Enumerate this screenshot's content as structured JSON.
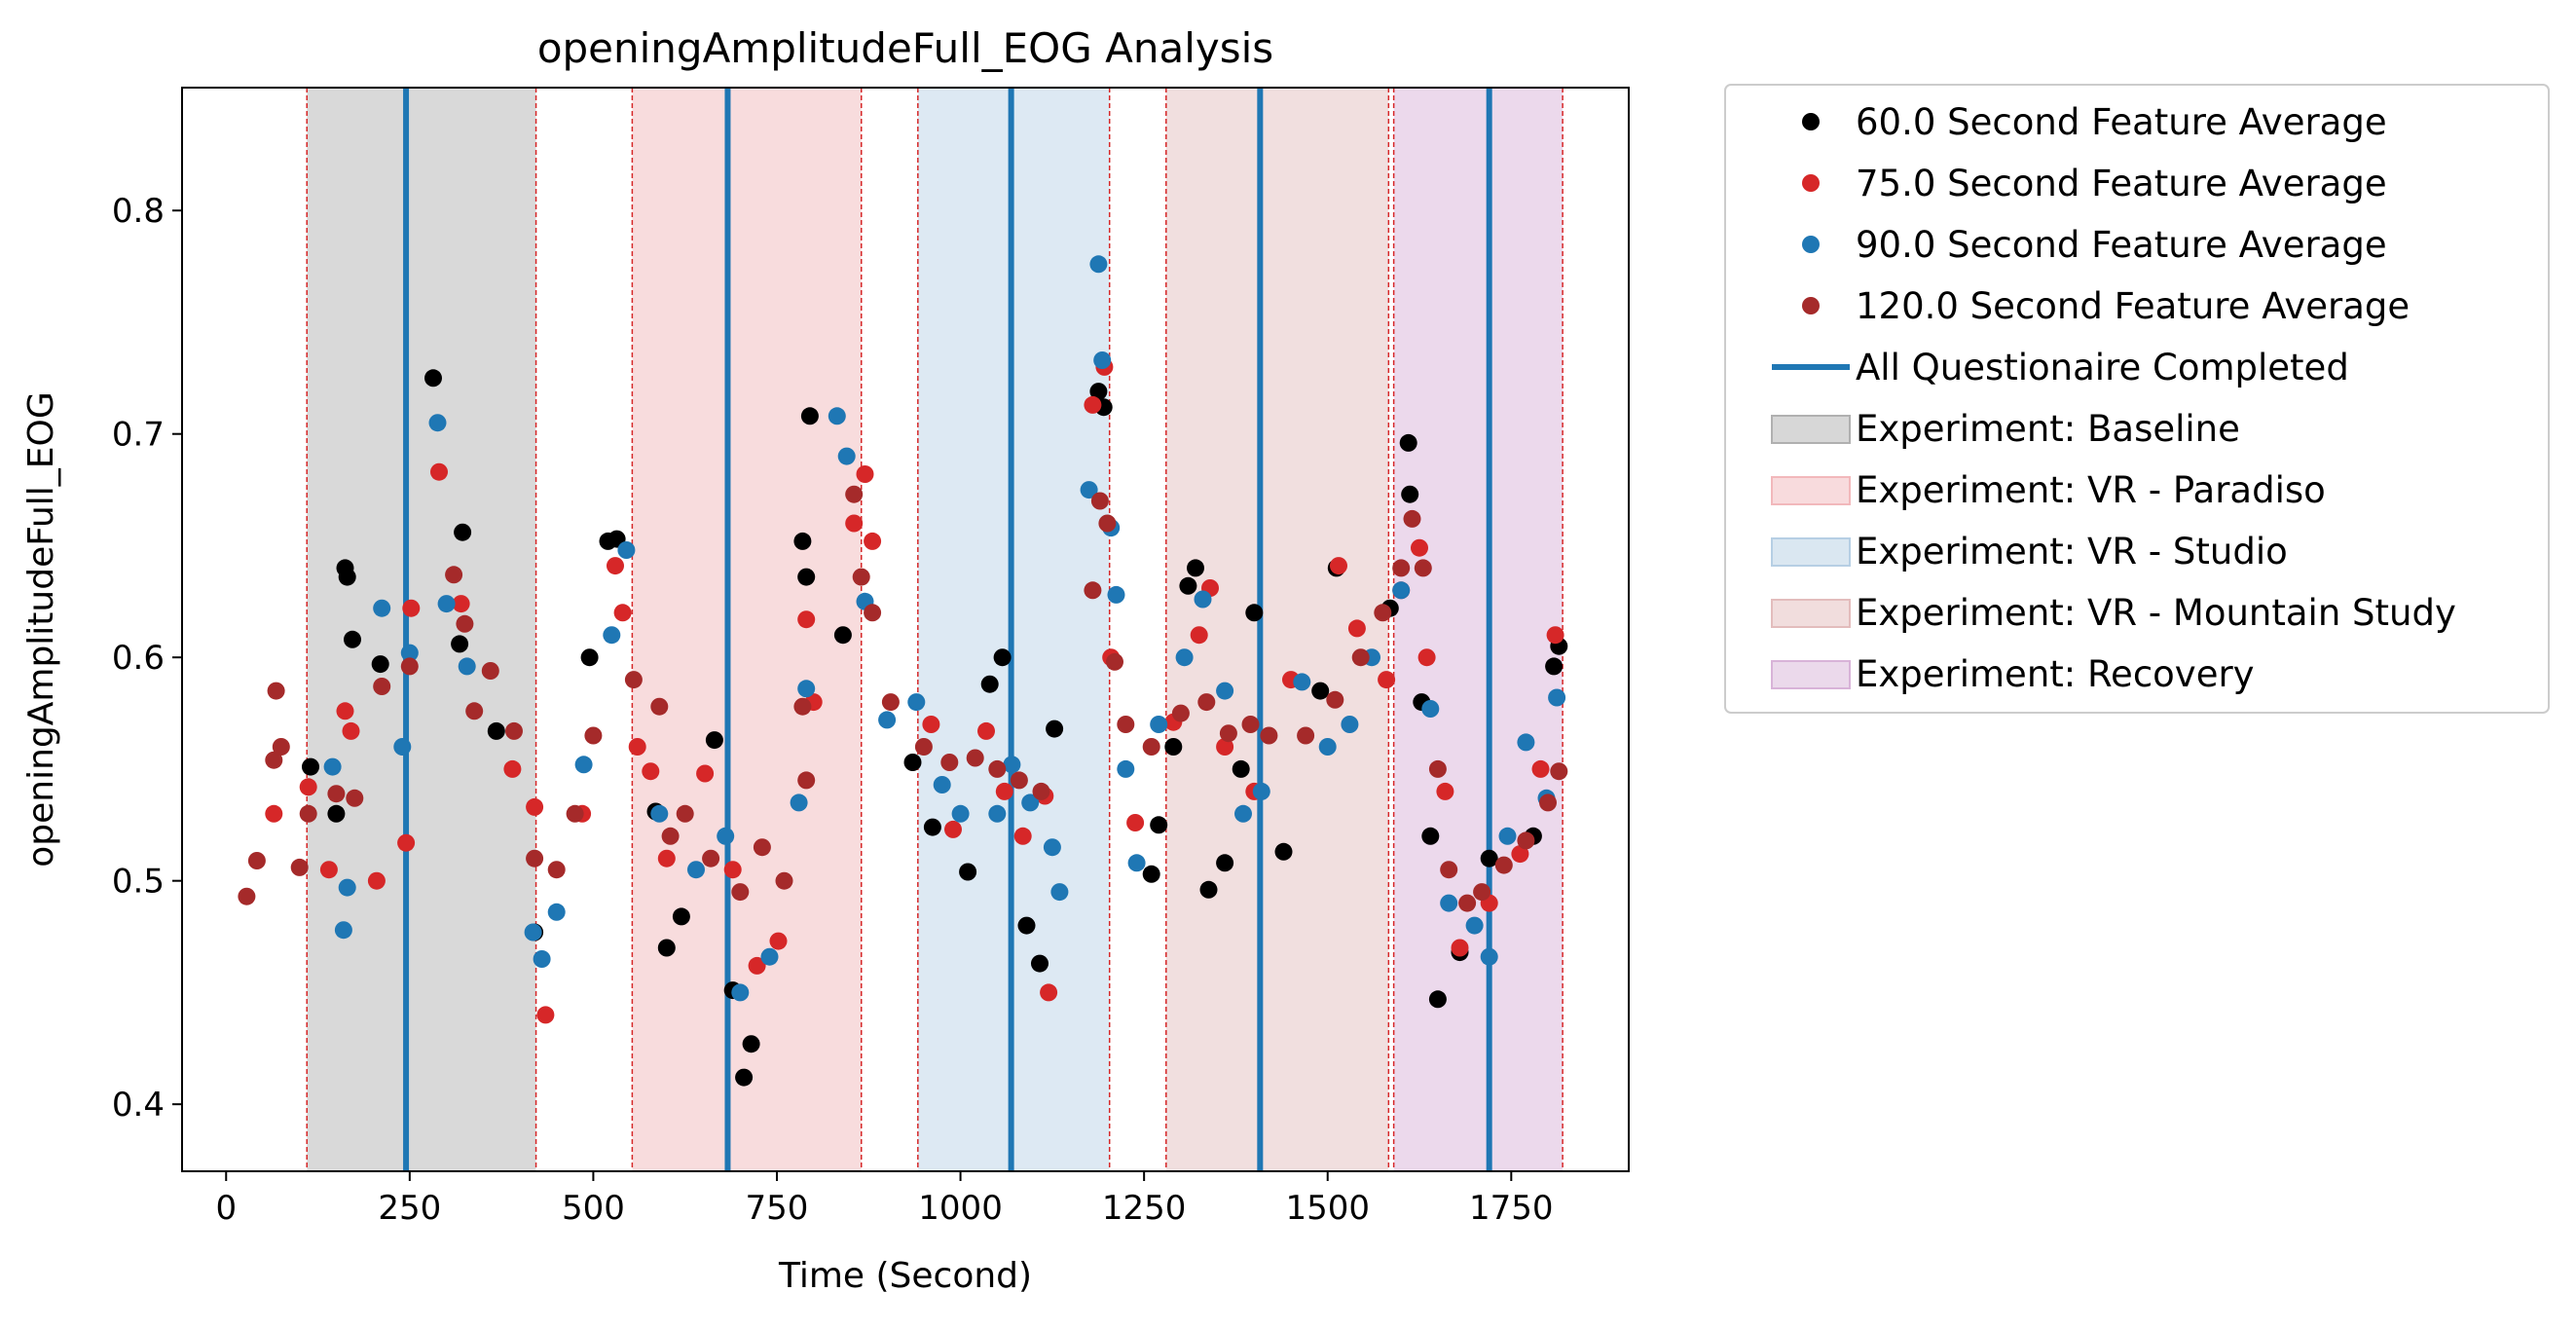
{
  "chart_data": {
    "type": "scatter",
    "title": "openingAmplitudeFull_EOG Analysis",
    "xlabel": "Time (Second)",
    "ylabel": "openingAmplitudeFull_EOG",
    "xlim": [
      -60,
      1910
    ],
    "ylim": [
      0.37,
      0.855
    ],
    "xticks": [
      0,
      250,
      500,
      750,
      1000,
      1250,
      1500,
      1750
    ],
    "xtick_labels": [
      "0",
      "250",
      "500",
      "750",
      "1000",
      "1250",
      "1500",
      "1750"
    ],
    "yticks": [
      0.4,
      0.5,
      0.6,
      0.7,
      0.8
    ],
    "ytick_labels": [
      "0.4",
      "0.5",
      "0.6",
      "0.7",
      "0.8"
    ],
    "grid": false,
    "legend_position": "outside-right",
    "legend": [
      {
        "label": "60.0 Second Feature Average",
        "kind": "marker",
        "color": "#000000"
      },
      {
        "label": "75.0 Second Feature Average",
        "kind": "marker",
        "color": "#d62728"
      },
      {
        "label": "90.0 Second Feature Average",
        "kind": "marker",
        "color": "#1f77b4"
      },
      {
        "label": "120.0 Second Feature Average",
        "kind": "marker",
        "color": "#a52a2a"
      },
      {
        "label": "All Questionaire Completed",
        "kind": "line",
        "color": "#1f77b4"
      },
      {
        "label": "Experiment: Baseline",
        "kind": "patch",
        "color": "#b0b0b0"
      },
      {
        "label": "Experiment: VR - Paradiso",
        "kind": "patch",
        "color": "#f2b8bb"
      },
      {
        "label": "Experiment: VR - Studio",
        "kind": "patch",
        "color": "#b6cfe4"
      },
      {
        "label": "Experiment: VR - Mountain Study",
        "kind": "patch",
        "color": "#e3bcbc"
      },
      {
        "label": "Experiment: Recovery",
        "kind": "patch",
        "color": "#d8b3d8"
      }
    ],
    "phases": [
      {
        "name": "Experiment: Baseline",
        "start": 110,
        "end": 422,
        "color": "#d9d9d9"
      },
      {
        "name": "Experiment: VR - Paradiso",
        "start": 553,
        "end": 865,
        "color": "#f8dcdd"
      },
      {
        "name": "Experiment: VR - Studio",
        "start": 942,
        "end": 1203,
        "color": "#dde9f3"
      },
      {
        "name": "Experiment: VR - Mountain Study",
        "start": 1280,
        "end": 1583,
        "color": "#f1dfdf"
      },
      {
        "name": "Experiment: Recovery",
        "start": 1590,
        "end": 1820,
        "color": "#ecd9ec"
      }
    ],
    "phase_boundaries": [
      110,
      422,
      553,
      865,
      942,
      1203,
      1280,
      1583,
      1590,
      1820
    ],
    "questionnaire_completed": [
      245,
      683,
      1069,
      1408,
      1720
    ],
    "series": [
      {
        "name": "60.0 Second Feature Average",
        "color": "#000000",
        "points": [
          [
            115,
            0.551
          ],
          [
            150,
            0.53
          ],
          [
            162,
            0.64
          ],
          [
            165,
            0.636
          ],
          [
            172,
            0.608
          ],
          [
            210,
            0.597
          ],
          [
            282,
            0.725
          ],
          [
            318,
            0.606
          ],
          [
            322,
            0.656
          ],
          [
            368,
            0.567
          ],
          [
            420,
            0.477
          ],
          [
            520,
            0.652
          ],
          [
            532,
            0.653
          ],
          [
            495,
            0.6
          ],
          [
            585,
            0.531
          ],
          [
            600,
            0.47
          ],
          [
            620,
            0.484
          ],
          [
            665,
            0.563
          ],
          [
            690,
            0.451
          ],
          [
            705,
            0.412
          ],
          [
            715,
            0.427
          ],
          [
            785,
            0.652
          ],
          [
            790,
            0.636
          ],
          [
            795,
            0.708
          ],
          [
            840,
            0.61
          ],
          [
            935,
            0.553
          ],
          [
            962,
            0.524
          ],
          [
            1010,
            0.504
          ],
          [
            1040,
            0.588
          ],
          [
            1057,
            0.6
          ],
          [
            1090,
            0.48
          ],
          [
            1108,
            0.463
          ],
          [
            1128,
            0.568
          ],
          [
            1188,
            0.719
          ],
          [
            1195,
            0.712
          ],
          [
            1260,
            0.503
          ],
          [
            1270,
            0.525
          ],
          [
            1290,
            0.56
          ],
          [
            1310,
            0.632
          ],
          [
            1320,
            0.64
          ],
          [
            1338,
            0.496
          ],
          [
            1360,
            0.508
          ],
          [
            1382,
            0.55
          ],
          [
            1400,
            0.62
          ],
          [
            1440,
            0.513
          ],
          [
            1490,
            0.585
          ],
          [
            1512,
            0.64
          ],
          [
            1585,
            0.622
          ],
          [
            1610,
            0.696
          ],
          [
            1612,
            0.673
          ],
          [
            1628,
            0.58
          ],
          [
            1640,
            0.52
          ],
          [
            1650,
            0.447
          ],
          [
            1680,
            0.468
          ],
          [
            1720,
            0.51
          ],
          [
            1780,
            0.52
          ],
          [
            1808,
            0.596
          ],
          [
            1815,
            0.605
          ]
        ]
      },
      {
        "name": "75.0 Second Feature Average",
        "color": "#d62728",
        "points": [
          [
            65,
            0.53
          ],
          [
            112,
            0.542
          ],
          [
            140,
            0.505
          ],
          [
            162,
            0.576
          ],
          [
            170,
            0.567
          ],
          [
            205,
            0.5
          ],
          [
            245,
            0.517
          ],
          [
            252,
            0.622
          ],
          [
            290,
            0.683
          ],
          [
            320,
            0.624
          ],
          [
            390,
            0.55
          ],
          [
            420,
            0.533
          ],
          [
            435,
            0.44
          ],
          [
            485,
            0.53
          ],
          [
            530,
            0.641
          ],
          [
            540,
            0.62
          ],
          [
            560,
            0.56
          ],
          [
            578,
            0.549
          ],
          [
            600,
            0.51
          ],
          [
            652,
            0.548
          ],
          [
            690,
            0.505
          ],
          [
            723,
            0.462
          ],
          [
            752,
            0.473
          ],
          [
            790,
            0.617
          ],
          [
            800,
            0.58
          ],
          [
            855,
            0.66
          ],
          [
            870,
            0.682
          ],
          [
            880,
            0.652
          ],
          [
            960,
            0.57
          ],
          [
            990,
            0.523
          ],
          [
            1035,
            0.567
          ],
          [
            1060,
            0.54
          ],
          [
            1085,
            0.52
          ],
          [
            1115,
            0.538
          ],
          [
            1120,
            0.45
          ],
          [
            1180,
            0.713
          ],
          [
            1196,
            0.73
          ],
          [
            1205,
            0.6
          ],
          [
            1238,
            0.526
          ],
          [
            1290,
            0.571
          ],
          [
            1325,
            0.61
          ],
          [
            1340,
            0.631
          ],
          [
            1360,
            0.56
          ],
          [
            1400,
            0.54
          ],
          [
            1450,
            0.59
          ],
          [
            1515,
            0.641
          ],
          [
            1540,
            0.613
          ],
          [
            1580,
            0.59
          ],
          [
            1600,
            0.63
          ],
          [
            1625,
            0.649
          ],
          [
            1635,
            0.6
          ],
          [
            1660,
            0.54
          ],
          [
            1680,
            0.47
          ],
          [
            1720,
            0.49
          ],
          [
            1762,
            0.512
          ],
          [
            1790,
            0.55
          ],
          [
            1810,
            0.61
          ]
        ]
      },
      {
        "name": "90.0 Second Feature Average",
        "color": "#1f77b4",
        "points": [
          [
            145,
            0.551
          ],
          [
            160,
            0.478
          ],
          [
            165,
            0.497
          ],
          [
            212,
            0.622
          ],
          [
            240,
            0.56
          ],
          [
            250,
            0.602
          ],
          [
            288,
            0.705
          ],
          [
            300,
            0.624
          ],
          [
            328,
            0.596
          ],
          [
            418,
            0.477
          ],
          [
            430,
            0.465
          ],
          [
            450,
            0.486
          ],
          [
            487,
            0.552
          ],
          [
            525,
            0.61
          ],
          [
            545,
            0.648
          ],
          [
            590,
            0.53
          ],
          [
            640,
            0.505
          ],
          [
            680,
            0.52
          ],
          [
            700,
            0.45
          ],
          [
            740,
            0.466
          ],
          [
            780,
            0.535
          ],
          [
            790,
            0.586
          ],
          [
            832,
            0.708
          ],
          [
            845,
            0.69
          ],
          [
            870,
            0.625
          ],
          [
            900,
            0.572
          ],
          [
            940,
            0.58
          ],
          [
            975,
            0.543
          ],
          [
            1000,
            0.53
          ],
          [
            1050,
            0.53
          ],
          [
            1070,
            0.552
          ],
          [
            1095,
            0.535
          ],
          [
            1125,
            0.515
          ],
          [
            1135,
            0.495
          ],
          [
            1175,
            0.675
          ],
          [
            1188,
            0.776
          ],
          [
            1193,
            0.733
          ],
          [
            1205,
            0.658
          ],
          [
            1212,
            0.628
          ],
          [
            1225,
            0.55
          ],
          [
            1240,
            0.508
          ],
          [
            1270,
            0.57
          ],
          [
            1305,
            0.6
          ],
          [
            1330,
            0.626
          ],
          [
            1360,
            0.585
          ],
          [
            1385,
            0.53
          ],
          [
            1410,
            0.54
          ],
          [
            1465,
            0.589
          ],
          [
            1500,
            0.56
          ],
          [
            1530,
            0.57
          ],
          [
            1560,
            0.6
          ],
          [
            1600,
            0.63
          ],
          [
            1640,
            0.577
          ],
          [
            1665,
            0.49
          ],
          [
            1700,
            0.48
          ],
          [
            1720,
            0.466
          ],
          [
            1745,
            0.52
          ],
          [
            1770,
            0.562
          ],
          [
            1798,
            0.537
          ],
          [
            1812,
            0.582
          ]
        ]
      },
      {
        "name": "120.0 Second Feature Average",
        "color": "#a52a2a",
        "points": [
          [
            28,
            0.493
          ],
          [
            42,
            0.509
          ],
          [
            65,
            0.554
          ],
          [
            68,
            0.585
          ],
          [
            75,
            0.56
          ],
          [
            100,
            0.506
          ],
          [
            112,
            0.53
          ],
          [
            150,
            0.539
          ],
          [
            175,
            0.537
          ],
          [
            212,
            0.587
          ],
          [
            250,
            0.596
          ],
          [
            310,
            0.637
          ],
          [
            325,
            0.615
          ],
          [
            338,
            0.576
          ],
          [
            360,
            0.594
          ],
          [
            392,
            0.567
          ],
          [
            420,
            0.51
          ],
          [
            450,
            0.505
          ],
          [
            475,
            0.53
          ],
          [
            500,
            0.565
          ],
          [
            555,
            0.59
          ],
          [
            590,
            0.578
          ],
          [
            605,
            0.52
          ],
          [
            625,
            0.53
          ],
          [
            660,
            0.51
          ],
          [
            700,
            0.495
          ],
          [
            730,
            0.515
          ],
          [
            760,
            0.5
          ],
          [
            785,
            0.578
          ],
          [
            790,
            0.545
          ],
          [
            855,
            0.673
          ],
          [
            865,
            0.636
          ],
          [
            880,
            0.62
          ],
          [
            905,
            0.58
          ],
          [
            950,
            0.56
          ],
          [
            985,
            0.553
          ],
          [
            1020,
            0.555
          ],
          [
            1050,
            0.55
          ],
          [
            1080,
            0.545
          ],
          [
            1110,
            0.54
          ],
          [
            1180,
            0.63
          ],
          [
            1190,
            0.67
          ],
          [
            1200,
            0.66
          ],
          [
            1210,
            0.598
          ],
          [
            1225,
            0.57
          ],
          [
            1260,
            0.56
          ],
          [
            1300,
            0.575
          ],
          [
            1335,
            0.58
          ],
          [
            1365,
            0.566
          ],
          [
            1395,
            0.57
          ],
          [
            1420,
            0.565
          ],
          [
            1470,
            0.565
          ],
          [
            1510,
            0.581
          ],
          [
            1545,
            0.6
          ],
          [
            1575,
            0.62
          ],
          [
            1600,
            0.64
          ],
          [
            1615,
            0.662
          ],
          [
            1630,
            0.64
          ],
          [
            1650,
            0.55
          ],
          [
            1665,
            0.505
          ],
          [
            1690,
            0.49
          ],
          [
            1710,
            0.495
          ],
          [
            1740,
            0.507
          ],
          [
            1770,
            0.518
          ],
          [
            1800,
            0.535
          ],
          [
            1815,
            0.549
          ]
        ]
      }
    ]
  }
}
